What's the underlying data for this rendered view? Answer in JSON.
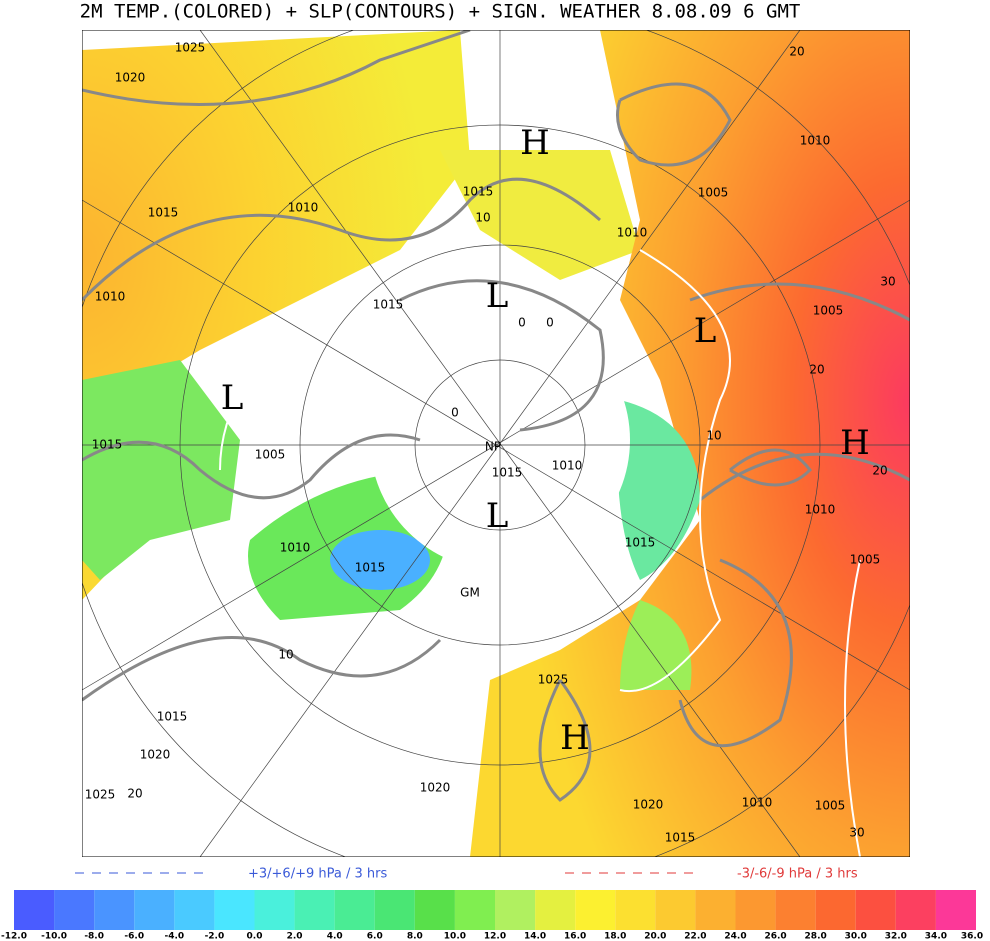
{
  "header": {
    "title": "2M TEMP.(COLORED) + SLP(CONTOURS) + SIGN. WEATHER 8.08.09 6   GMT"
  },
  "map": {
    "labels": [
      "H",
      "L",
      "L",
      "H",
      "L",
      "H",
      "L",
      "NP",
      "GM",
      "1025",
      "1020",
      "1015",
      "1010",
      "1010",
      "1015",
      "1005",
      "1010",
      "1015",
      "1015",
      "1015",
      "1015",
      "1010",
      "1010",
      "1005",
      "1010",
      "1005",
      "1010",
      "1005",
      "1015",
      "1025",
      "1020",
      "1020",
      "1015",
      "1010",
      "1005",
      "1020",
      "1015",
      "1025",
      "10",
      "20",
      "20",
      "30",
      "20",
      "20",
      "10",
      "30",
      "0",
      "0",
      "0",
      "10"
    ]
  },
  "legend": {
    "rise": "+3/+6/+9 hPa / 3 hrs",
    "fall": "-3/-6/-9 hPa / 3 hrs",
    "rise_color": "#3a5ad8",
    "fall_color": "#e03a3a"
  },
  "colorbar": {
    "ticks": [
      {
        "value": -12,
        "label": "-12.0"
      },
      {
        "value": -10,
        "label": "-10.0"
      },
      {
        "value": -8,
        "label": "-8.0"
      },
      {
        "value": -6,
        "label": "-6.0"
      },
      {
        "value": -4,
        "label": "-4.0"
      },
      {
        "value": -2,
        "label": "-2.0"
      },
      {
        "value": 0,
        "label": "0.0"
      },
      {
        "value": 2,
        "label": "2.0"
      },
      {
        "value": 4,
        "label": "4.0"
      },
      {
        "value": 6,
        "label": "6.0"
      },
      {
        "value": 8,
        "label": "8.0"
      },
      {
        "value": 10,
        "label": "10.0"
      },
      {
        "value": 12,
        "label": "12.0"
      },
      {
        "value": 14,
        "label": "14.0"
      },
      {
        "value": 16,
        "label": "16.0"
      },
      {
        "value": 18,
        "label": "18.0"
      },
      {
        "value": 20,
        "label": "20.0"
      },
      {
        "value": 22,
        "label": "22.0"
      },
      {
        "value": 24,
        "label": "24.0"
      },
      {
        "value": 26,
        "label": "26.0"
      },
      {
        "value": 28,
        "label": "28.0"
      },
      {
        "value": 30,
        "label": "30.0"
      },
      {
        "value": 32,
        "label": "32.0"
      },
      {
        "value": 34,
        "label": "34.0"
      },
      {
        "value": 36,
        "label": "36.0"
      }
    ],
    "colors": [
      "#4a5cff",
      "#4a78ff",
      "#4a94ff",
      "#4ab0ff",
      "#4acaff",
      "#4ae6ff",
      "#4af0dc",
      "#4af0b4",
      "#4aec94",
      "#4ae674",
      "#58e04a",
      "#80ee50",
      "#b0f060",
      "#e4f040",
      "#fcf030",
      "#fce030",
      "#fcca30",
      "#fcb030",
      "#fc9830",
      "#fc8030",
      "#fc6830",
      "#fc5040",
      "#fc4060",
      "#fc3898"
    ]
  }
}
